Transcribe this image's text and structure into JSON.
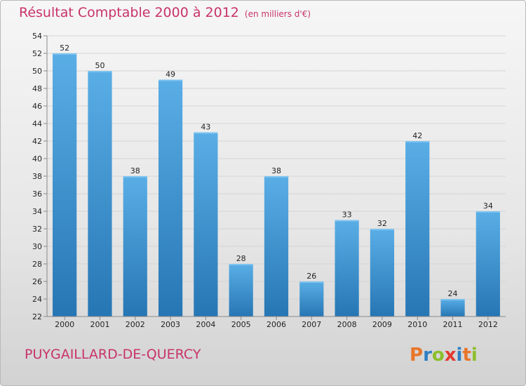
{
  "header": {
    "title": "Résultat Comptable 2000 à 2012",
    "unit": "(en milliers d'€)"
  },
  "footer": {
    "commune": "PUYGAILLARD-DE-QUERCY",
    "logo_text": "Proxiti"
  },
  "colors": {
    "title": "#c8336a",
    "bar_top": "#5aaee6",
    "bar_bottom": "#2676b4",
    "logo_letters": [
      "#e8762a",
      "#2f7fc4",
      "#8cbf2a",
      "#e33b2f",
      "#2f7fc4",
      "#e8762a",
      "#8cbf2a"
    ]
  },
  "chart_data": {
    "type": "bar",
    "title": "Résultat Comptable 2000 à 2012",
    "xlabel": "",
    "ylabel": "",
    "categories": [
      "2000",
      "2001",
      "2002",
      "2003",
      "2004",
      "2005",
      "2006",
      "2007",
      "2008",
      "2009",
      "2010",
      "2011",
      "2012"
    ],
    "values": [
      52,
      50,
      38,
      49,
      43,
      28,
      38,
      26,
      33,
      32,
      42,
      24,
      34
    ],
    "ylim": [
      22,
      54
    ],
    "yticks": [
      22,
      24,
      26,
      28,
      30,
      32,
      34,
      36,
      38,
      40,
      42,
      44,
      46,
      48,
      50,
      52,
      54
    ],
    "grid": true,
    "data_labels": true
  }
}
